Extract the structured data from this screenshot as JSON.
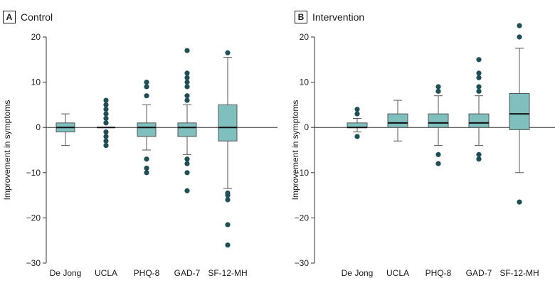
{
  "chart_data": [
    {
      "type": "boxplot",
      "panel": "A",
      "title": "Control",
      "ylabel": "Improvement in symptoms",
      "xlabel": "",
      "ylim": [
        -30,
        20
      ],
      "yticks": [
        -30,
        -20,
        -10,
        0,
        10,
        20
      ],
      "grid": false,
      "box_color": "#7fbfbe",
      "outlier_color": "#1f4f55",
      "categories": [
        "De Jong",
        "UCLA",
        "PHQ-8",
        "GAD-7",
        "SF-12-MH"
      ],
      "boxes": [
        {
          "q1": -1,
          "median": 0,
          "q3": 1,
          "whisker_low": -4,
          "whisker_high": 3,
          "outliers": []
        },
        {
          "q1": 0,
          "median": 0,
          "q3": 0,
          "whisker_low": 0,
          "whisker_high": 0,
          "outliers": [
            6,
            5,
            4,
            3,
            2,
            1,
            -1,
            -2,
            -3,
            -4
          ]
        },
        {
          "q1": -2,
          "median": 0,
          "q3": 1,
          "whisker_low": -5,
          "whisker_high": 5,
          "outliers": [
            10,
            9,
            7,
            -7,
            -9,
            -10
          ]
        },
        {
          "q1": -2,
          "median": 0,
          "q3": 1,
          "whisker_low": -6,
          "whisker_high": 5,
          "outliers": [
            17,
            12,
            11,
            10,
            9,
            7,
            6,
            -7,
            -8,
            -10,
            -14
          ]
        },
        {
          "q1": -3,
          "median": 0,
          "q3": 5,
          "whisker_low": -13.5,
          "whisker_high": 15.5,
          "outliers": [
            16.5,
            -14.5,
            -15,
            -16,
            -21.5,
            -26
          ]
        }
      ]
    },
    {
      "type": "boxplot",
      "panel": "B",
      "title": "Intervention",
      "ylabel": "Improvement in symptoms",
      "xlabel": "",
      "ylim": [
        -30,
        20
      ],
      "yticks": [
        -30,
        -20,
        -10,
        0,
        10,
        20
      ],
      "grid": false,
      "box_color": "#7fbfbe",
      "outlier_color": "#1f4f55",
      "categories": [
        "De Jong",
        "UCLA",
        "PHQ-8",
        "GAD-7",
        "SF-12-MH"
      ],
      "boxes": [
        {
          "q1": 0,
          "median": 0,
          "q3": 1,
          "whisker_low": -1,
          "whisker_high": 2,
          "outliers": [
            4,
            3,
            -2
          ]
        },
        {
          "q1": 0,
          "median": 1,
          "q3": 3,
          "whisker_low": -3,
          "whisker_high": 6,
          "outliers": []
        },
        {
          "q1": 0,
          "median": 1,
          "q3": 3,
          "whisker_low": -4,
          "whisker_high": 7,
          "outliers": [
            9,
            8,
            -6,
            -8
          ]
        },
        {
          "q1": 0,
          "median": 1,
          "q3": 3,
          "whisker_low": -4,
          "whisker_high": 7,
          "outliers": [
            15,
            12,
            11,
            9,
            8,
            -6,
            -7
          ]
        },
        {
          "q1": -0.5,
          "median": 3,
          "q3": 7.5,
          "whisker_low": -10,
          "whisker_high": 17.5,
          "outliers": [
            22.5,
            20,
            -16.5
          ]
        }
      ]
    }
  ]
}
